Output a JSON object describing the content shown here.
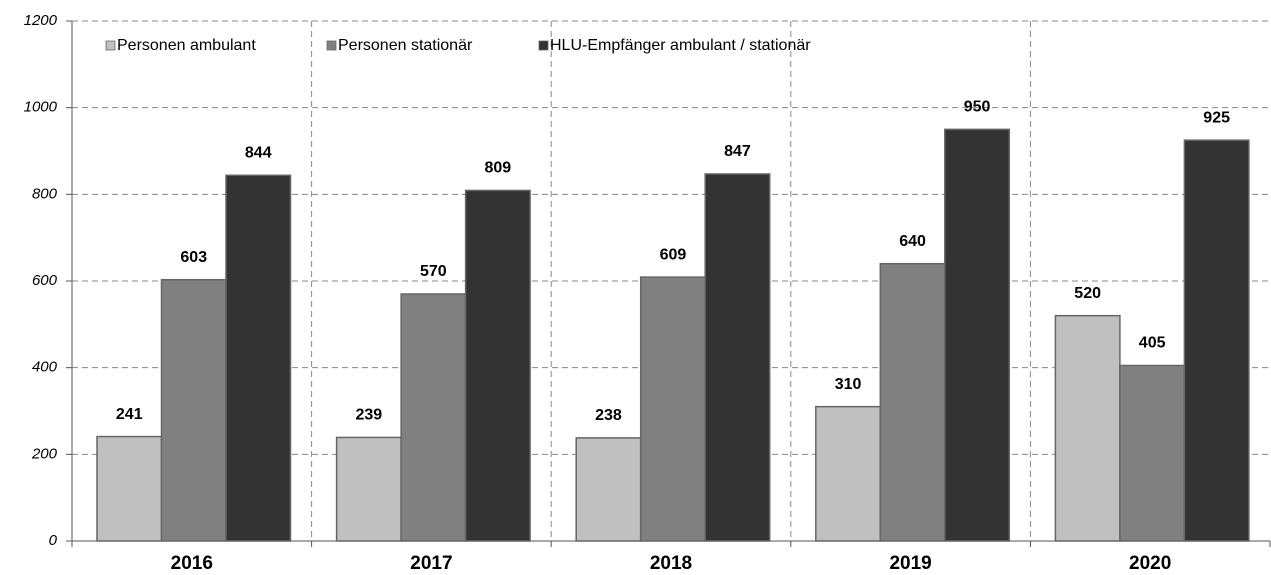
{
  "chart_data": {
    "type": "bar",
    "categories": [
      "2016",
      "2017",
      "2018",
      "2019",
      "2020"
    ],
    "series": [
      {
        "name": "Personen ambulant",
        "color": "#c0c0c0",
        "values": [
          241,
          239,
          238,
          310,
          520
        ]
      },
      {
        "name": "Personen stationär",
        "color": "#808080",
        "values": [
          603,
          570,
          609,
          640,
          405
        ]
      },
      {
        "name": "HLU-Empfänger ambulant / stationär",
        "color": "#333333",
        "values": [
          844,
          809,
          847,
          950,
          925
        ]
      }
    ],
    "ylim": [
      0,
      1200
    ],
    "yticks": [
      0,
      200,
      400,
      600,
      800,
      1000,
      1200
    ],
    "grid": true,
    "legend": "top-left"
  }
}
